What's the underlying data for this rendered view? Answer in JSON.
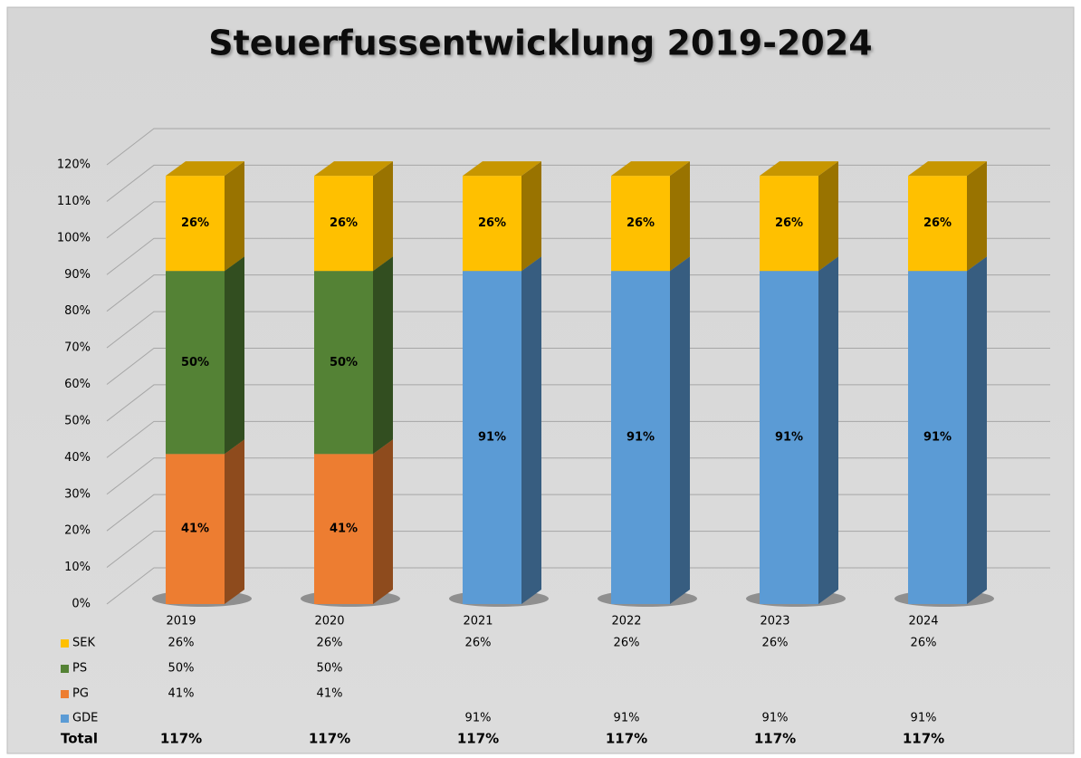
{
  "chart_data": {
    "type": "bar3d_stacked",
    "title": "Steuerfussentwicklung 2019-2024",
    "categories": [
      "2019",
      "2020",
      "2021",
      "2022",
      "2023",
      "2024"
    ],
    "series": [
      {
        "name": "GDE",
        "color": "#5b9bd5",
        "values": [
          null,
          null,
          91,
          91,
          91,
          91
        ],
        "value_labels": [
          null,
          null,
          "91%",
          "91%",
          "91%",
          "91%"
        ]
      },
      {
        "name": "PG",
        "color": "#ed7d31",
        "values": [
          41,
          41,
          null,
          null,
          null,
          null
        ],
        "value_labels": [
          "41%",
          "41%",
          null,
          null,
          null,
          null
        ]
      },
      {
        "name": "PS",
        "color": "#548235",
        "values": [
          50,
          50,
          null,
          null,
          null,
          null
        ],
        "value_labels": [
          "50%",
          "50%",
          null,
          null,
          null,
          null
        ]
      },
      {
        "name": "SEK",
        "color": "#ffc000",
        "values": [
          26,
          26,
          26,
          26,
          26,
          26
        ],
        "value_labels": [
          "26%",
          "26%",
          "26%",
          "26%",
          "26%",
          "26%"
        ]
      }
    ],
    "total_label": "Total",
    "totals": [
      117,
      117,
      117,
      117,
      117,
      117
    ],
    "total_labels": [
      "117%",
      "117%",
      "117%",
      "117%",
      "117%",
      "117%"
    ],
    "ylim": [
      0,
      120
    ],
    "yticks": [
      {
        "value": 0,
        "label": "0%"
      },
      {
        "value": 10,
        "label": "10%"
      },
      {
        "value": 20,
        "label": "20%"
      },
      {
        "value": 30,
        "label": "30%"
      },
      {
        "value": 40,
        "label": "40%"
      },
      {
        "value": 50,
        "label": "50%"
      },
      {
        "value": 60,
        "label": "60%"
      },
      {
        "value": 70,
        "label": "70%"
      },
      {
        "value": 80,
        "label": "80%"
      },
      {
        "value": 90,
        "label": "90%"
      },
      {
        "value": 100,
        "label": "100%"
      },
      {
        "value": 110,
        "label": "110%"
      },
      {
        "value": 120,
        "label": "120%"
      }
    ],
    "grid": true
  }
}
